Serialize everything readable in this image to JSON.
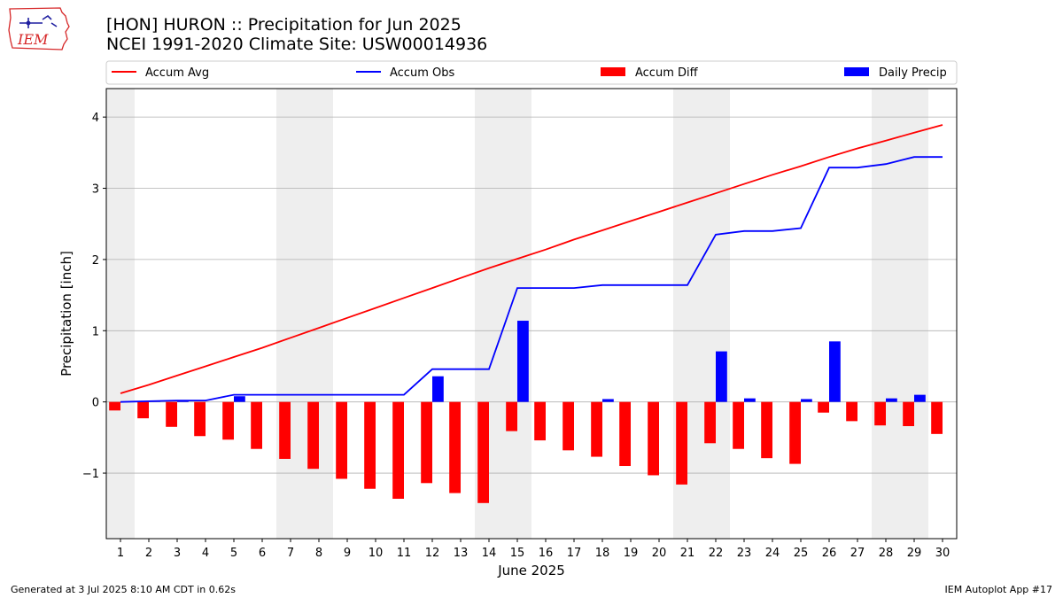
{
  "header": {
    "title_line1": "[HON] HURON :: Precipitation for Jun 2025",
    "title_line2": "NCEI 1991-2020 Climate Site: USW00014936"
  },
  "logo": {
    "text": "IEM",
    "icon": "iowa-state-outline-logo",
    "color": "#d62728"
  },
  "footer": {
    "left": "Generated at 3 Jul 2025 8:10 AM CDT in 0.62s",
    "right": "IEM Autoplot App #17"
  },
  "chart_data": {
    "type": "bar",
    "xlabel": "June 2025",
    "ylabel": "Precipitation [inch]",
    "ylim": [
      -1.92,
      4.4
    ],
    "yticks": [
      -1,
      0,
      1,
      2,
      3,
      4
    ],
    "ytick_labels": [
      "−1",
      "0",
      "1",
      "2",
      "3",
      "4"
    ],
    "grid": "y",
    "legend_placement": "top",
    "weekend_shading": [
      [
        1,
        1
      ],
      [
        7,
        8
      ],
      [
        14,
        15
      ],
      [
        21,
        22
      ],
      [
        28,
        29
      ]
    ],
    "x": [
      1,
      2,
      3,
      4,
      5,
      6,
      7,
      8,
      9,
      10,
      11,
      12,
      13,
      14,
      15,
      16,
      17,
      18,
      19,
      20,
      21,
      22,
      23,
      24,
      25,
      26,
      27,
      28,
      29,
      30
    ],
    "series": [
      {
        "name": "Accum Avg",
        "kind": "line",
        "color": "#ff0000",
        "values": [
          0.12,
          0.24,
          0.37,
          0.5,
          0.63,
          0.76,
          0.9,
          1.04,
          1.18,
          1.32,
          1.46,
          1.6,
          1.74,
          1.88,
          2.01,
          2.14,
          2.28,
          2.41,
          2.54,
          2.67,
          2.8,
          2.93,
          3.06,
          3.19,
          3.31,
          3.44,
          3.56,
          3.67,
          3.78,
          3.89
        ]
      },
      {
        "name": "Accum Obs",
        "kind": "line",
        "color": "#0000ff",
        "values": [
          0.0,
          0.01,
          0.02,
          0.02,
          0.1,
          0.1,
          0.1,
          0.1,
          0.1,
          0.1,
          0.1,
          0.46,
          0.46,
          0.46,
          1.6,
          1.6,
          1.6,
          1.64,
          1.64,
          1.64,
          1.64,
          2.35,
          2.4,
          2.4,
          2.44,
          3.29,
          3.29,
          3.34,
          3.44,
          3.44
        ]
      },
      {
        "name": "Accum Diff",
        "kind": "bar",
        "color": "#ff0000",
        "values": [
          -0.12,
          -0.23,
          -0.35,
          -0.48,
          -0.53,
          -0.66,
          -0.8,
          -0.94,
          -1.08,
          -1.22,
          -1.36,
          -1.14,
          -1.28,
          -1.42,
          -0.41,
          -0.54,
          -0.68,
          -0.77,
          -0.9,
          -1.03,
          -1.16,
          -0.58,
          -0.66,
          -0.79,
          -0.87,
          -0.15,
          -0.27,
          -0.33,
          -0.34,
          -0.45
        ]
      },
      {
        "name": "Daily Precip",
        "kind": "bar",
        "color": "#0000ff",
        "values": [
          0.0,
          0.01,
          0.01,
          0.0,
          0.08,
          0.0,
          0.0,
          0.0,
          0.0,
          0.0,
          0.0,
          0.36,
          0.0,
          0.0,
          1.14,
          0.0,
          0.0,
          0.04,
          0.0,
          0.0,
          0.0,
          0.71,
          0.05,
          0.0,
          0.04,
          0.85,
          0.0,
          0.05,
          0.1,
          0.0
        ]
      }
    ]
  }
}
